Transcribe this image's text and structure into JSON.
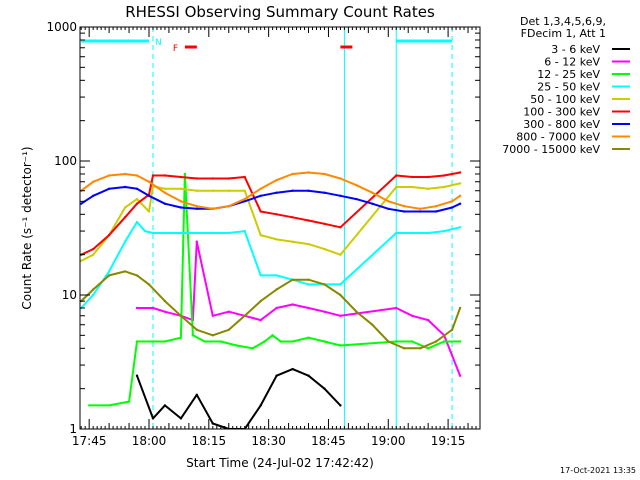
{
  "chart_data": {
    "type": "line",
    "title": "RHESSI Observing Summary Count Rates",
    "xlabel": "Start Time (24-Jul-02 17:42:42)",
    "ylabel": "Count Rate (s⁻¹ detector⁻¹)",
    "yscale": "log",
    "ylim": [
      1,
      1000
    ],
    "xlim": [
      "17:42:42",
      "19:23:00"
    ],
    "x_ticks": [
      "17:45",
      "18:00",
      "18:15",
      "18:30",
      "18:45",
      "19:00",
      "19:15"
    ],
    "y_ticks": [
      "1",
      "10",
      "100",
      "1000"
    ],
    "legend_header": [
      "Det 1,3,4,5,6,9,",
      "FDecim 1, Att 1"
    ],
    "legend_placement": "right",
    "date_stamp": "17-Oct-2021 13:35",
    "flags": [
      {
        "label": "N",
        "color": "#00ffff",
        "segments": [
          [
            "17:43",
            "18:00"
          ],
          [
            "19:02",
            "19:16"
          ]
        ]
      },
      {
        "label": "F",
        "color": "#ff0000",
        "segments": [
          [
            "18:09",
            "18:12"
          ],
          [
            "18:48",
            "18:51"
          ]
        ]
      }
    ],
    "markers": [
      {
        "time": "18:01",
        "color": "#00ffff",
        "style": "dashed"
      },
      {
        "time": "18:49",
        "color": "#00ffff",
        "style": "solid"
      },
      {
        "time": "19:02",
        "color": "#00ffff",
        "style": "solid"
      },
      {
        "time": "19:16",
        "color": "#00ffff",
        "style": "dashed"
      }
    ],
    "series": [
      {
        "name": "3 - 6 keV",
        "color": "#000000",
        "x": [
          "17:57",
          "18:01",
          "18:04",
          "18:08",
          "18:12",
          "18:16",
          "18:20",
          "18:24",
          "18:28",
          "18:32",
          "18:36",
          "18:40",
          "18:44",
          "18:48"
        ],
        "y": [
          2.5,
          1.2,
          1.5,
          1.2,
          1.8,
          1.1,
          1.0,
          1.0,
          1.5,
          2.5,
          2.8,
          2.5,
          2.0,
          1.5
        ]
      },
      {
        "name": "6 - 12 keV",
        "color": "#ff00ff",
        "x": [
          "17:57",
          "18:01",
          "18:04",
          "18:08",
          "18:11",
          "18:12",
          "18:16",
          "18:20",
          "18:24",
          "18:28",
          "18:32",
          "18:36",
          "18:40",
          "18:44",
          "18:48",
          "19:02",
          "19:06",
          "19:10",
          "19:14",
          "19:18"
        ],
        "y": [
          8,
          8,
          7.5,
          7,
          6.5,
          25,
          7,
          7.5,
          7,
          6.5,
          8,
          8.5,
          8,
          7.5,
          7,
          8,
          7,
          6.5,
          5,
          2.5
        ]
      },
      {
        "name": "12 - 25 keV",
        "color": "#00ff00",
        "x": [
          "17:45",
          "17:50",
          "17:55",
          "17:57",
          "18:01",
          "18:04",
          "18:08",
          "18:09",
          "18:11",
          "18:14",
          "18:18",
          "18:22",
          "18:26",
          "18:29",
          "18:31",
          "18:33",
          "18:36",
          "18:40",
          "18:44",
          "18:48",
          "19:02",
          "19:06",
          "19:10",
          "19:14",
          "19:18"
        ],
        "y": [
          1.5,
          1.5,
          1.6,
          4.5,
          4.5,
          4.5,
          4.8,
          80,
          5.0,
          4.5,
          4.5,
          4.2,
          4.0,
          4.5,
          5.0,
          4.5,
          4.5,
          4.8,
          4.5,
          4.2,
          4.5,
          4.5,
          4.0,
          4.5,
          4.5
        ]
      },
      {
        "name": "25 - 50 keV",
        "color": "#00ffff",
        "x": [
          "17:43",
          "17:46",
          "17:50",
          "17:54",
          "17:57",
          "17:59",
          "18:01",
          "18:04",
          "18:08",
          "18:12",
          "18:16",
          "18:20",
          "18:24",
          "18:28",
          "18:32",
          "18:36",
          "18:40",
          "18:44",
          "18:48",
          "19:02",
          "19:06",
          "19:10",
          "19:14",
          "19:18"
        ],
        "y": [
          8,
          10,
          15,
          25,
          35,
          30,
          29,
          29,
          29,
          29,
          29,
          29,
          30,
          14,
          14,
          13,
          12,
          12,
          12,
          29,
          29,
          29,
          30,
          32
        ]
      },
      {
        "name": "50 - 100 keV",
        "color": "#cccc00",
        "x": [
          "17:43",
          "17:46",
          "17:50",
          "17:54",
          "17:57",
          "18:00",
          "18:01",
          "18:04",
          "18:08",
          "18:12",
          "18:16",
          "18:20",
          "18:24",
          "18:28",
          "18:32",
          "18:36",
          "18:40",
          "18:44",
          "18:48",
          "19:02",
          "19:06",
          "19:10",
          "19:14",
          "19:18"
        ],
        "y": [
          18,
          20,
          28,
          45,
          52,
          42,
          65,
          62,
          62,
          60,
          60,
          60,
          60,
          28,
          26,
          25,
          24,
          22,
          20,
          64,
          64,
          62,
          64,
          68
        ]
      },
      {
        "name": "100 - 300 keV",
        "color": "#ff0000",
        "x": [
          "17:43",
          "17:46",
          "17:50",
          "17:54",
          "17:57",
          "18:00",
          "18:01",
          "18:04",
          "18:08",
          "18:12",
          "18:16",
          "18:20",
          "18:24",
          "18:28",
          "18:32",
          "18:36",
          "18:40",
          "18:44",
          "18:48",
          "19:02",
          "19:06",
          "19:10",
          "19:14",
          "19:18"
        ],
        "y": [
          20,
          22,
          28,
          38,
          48,
          56,
          78,
          78,
          76,
          74,
          74,
          74,
          76,
          42,
          40,
          38,
          36,
          34,
          32,
          78,
          76,
          76,
          78,
          82
        ]
      },
      {
        "name": "300 - 800 keV",
        "color": "#0000ff",
        "x": [
          "17:43",
          "17:46",
          "17:50",
          "17:54",
          "17:57",
          "18:00",
          "18:04",
          "18:08",
          "18:12",
          "18:16",
          "18:20",
          "18:24",
          "18:28",
          "18:32",
          "18:36",
          "18:40",
          "18:44",
          "18:48",
          "18:52",
          "18:56",
          "19:00",
          "19:04",
          "19:08",
          "19:12",
          "19:16",
          "19:18"
        ],
        "y": [
          48,
          55,
          62,
          64,
          62,
          55,
          48,
          45,
          44,
          44,
          46,
          50,
          55,
          58,
          60,
          60,
          58,
          55,
          52,
          48,
          44,
          42,
          42,
          42,
          45,
          48
        ]
      },
      {
        "name": "800 - 7000 keV",
        "color": "#ff8800",
        "x": [
          "17:43",
          "17:46",
          "17:50",
          "17:54",
          "17:57",
          "18:00",
          "18:04",
          "18:08",
          "18:12",
          "18:16",
          "18:20",
          "18:24",
          "18:28",
          "18:32",
          "18:36",
          "18:40",
          "18:44",
          "18:48",
          "18:52",
          "18:56",
          "19:00",
          "19:04",
          "19:08",
          "19:12",
          "19:16",
          "19:18"
        ],
        "y": [
          60,
          70,
          78,
          80,
          78,
          70,
          58,
          50,
          46,
          44,
          46,
          52,
          62,
          72,
          80,
          82,
          80,
          74,
          66,
          58,
          50,
          46,
          44,
          46,
          50,
          55
        ]
      },
      {
        "name": "7000 - 15000 keV",
        "color": "#888800",
        "x": [
          "17:43",
          "17:46",
          "17:50",
          "17:54",
          "17:57",
          "18:00",
          "18:04",
          "18:08",
          "18:12",
          "18:16",
          "18:20",
          "18:24",
          "18:28",
          "18:32",
          "18:36",
          "18:40",
          "18:44",
          "18:48",
          "18:52",
          "18:56",
          "19:00",
          "19:04",
          "19:08",
          "19:12",
          "19:16",
          "19:18"
        ],
        "y": [
          9,
          11,
          14,
          15,
          14,
          12,
          9,
          7,
          5.5,
          5,
          5.5,
          7,
          9,
          11,
          13,
          13,
          12,
          10,
          7.5,
          6,
          4.5,
          4,
          4,
          4.5,
          5.5,
          8
        ]
      }
    ]
  }
}
